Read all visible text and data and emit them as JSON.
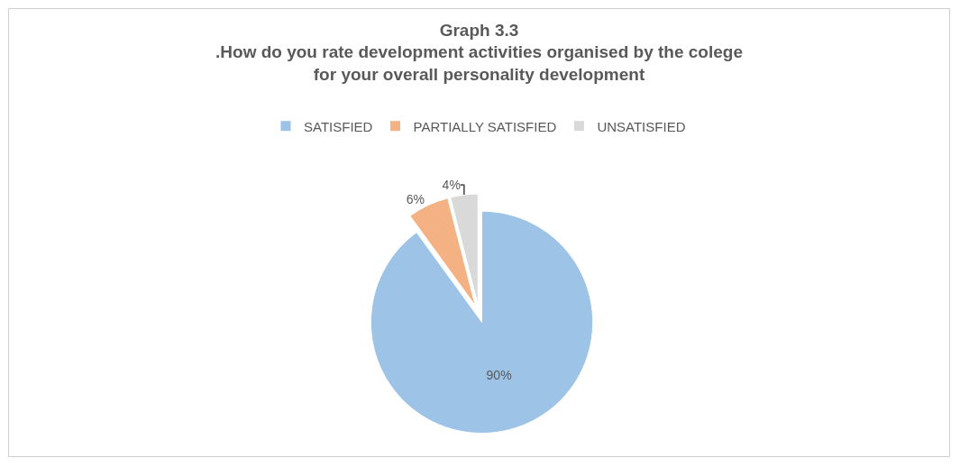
{
  "chart_data": {
    "type": "pie",
    "title": "Graph 3.3",
    "subtitle": ".How do you rate development activities organised by the colege\nfor your overall personality development",
    "categories": [
      "SATISFIED",
      "PARTIALLY SATISFIED",
      "UNSATISFIED"
    ],
    "values": [
      90,
      6,
      4
    ],
    "colors": [
      "#9dc3e6",
      "#f4b183",
      "#d9d9d9"
    ],
    "value_labels": [
      "90%",
      "6%",
      "4%"
    ],
    "legend": "top"
  }
}
